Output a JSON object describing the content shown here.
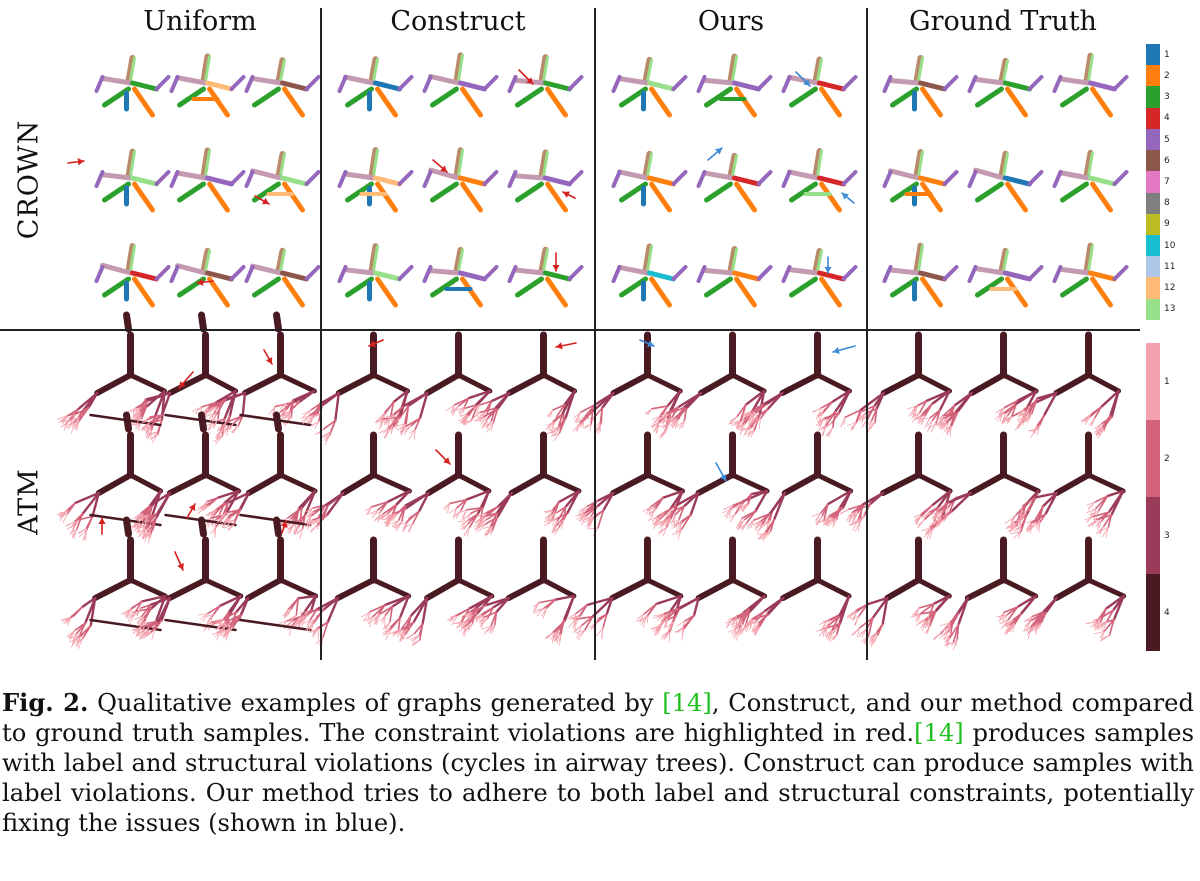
{
  "figure": {
    "column_titles": [
      "Uniform",
      "Construct",
      "Ours",
      "Ground Truth"
    ],
    "row_labels": [
      "CROWN",
      "ATM"
    ],
    "crown_colorbar": {
      "labels": [
        "1",
        "2",
        "3",
        "4",
        "5",
        "6",
        "7",
        "8",
        "9",
        "10",
        "11",
        "12",
        "13"
      ],
      "colors": [
        "#1f77b4",
        "#ff7f0e",
        "#2ca02c",
        "#d62728",
        "#9467bd",
        "#8c564b",
        "#e377c2",
        "#7f7f7f",
        "#bcbd22",
        "#17becf",
        "#aec7e8",
        "#ffbb78",
        "#98df8a"
      ]
    },
    "atm_colorbar": {
      "labels": [
        "1",
        "2",
        "3",
        "4"
      ],
      "colors": [
        "#f4a2ad",
        "#d2637a",
        "#9b3b5a",
        "#4a1a22"
      ]
    },
    "crown_label_colors": [
      "#ff7f0e",
      "#2ca02c",
      "#9467bd",
      "#8c564b",
      "#ffbb78",
      "#98df8a",
      "#1f77b4",
      "#17becf",
      "#d62728"
    ],
    "atm_colors": {
      "trunk": "#4a1a22",
      "branch": "#9b3b5a",
      "twig": "#d2637a",
      "fine": "#f4a2ad"
    },
    "violation_color": "#d62020",
    "fix_color": "#3a8ad6"
  },
  "caption": {
    "label": "Fig. 2.",
    "text_1": " Qualitative examples of graphs generated by ",
    "cite_1": "[14]",
    "text_2": ", Construct, and our method compared to ground truth samples. The constraint violations are highlighted in red.",
    "cite_2": "[14]",
    "text_3": " produces samples with label and structural violations (cycles in airway trees). Construct can produce samples with label violations. Our method tries to adhere to both label and structural constraints, potentially fixing the issues (shown in blue)."
  }
}
